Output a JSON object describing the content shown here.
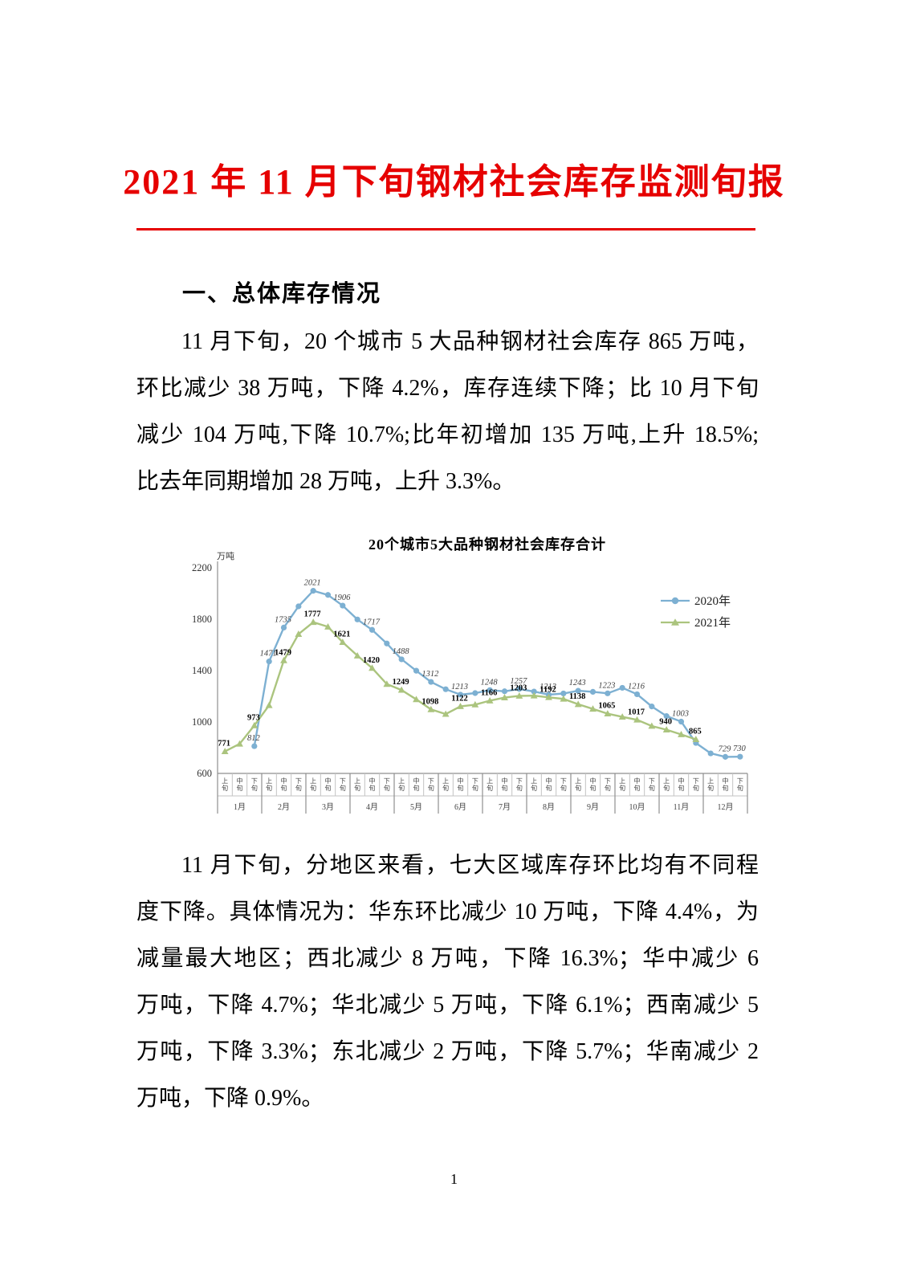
{
  "report": {
    "title": "2021 年 11 月下旬钢材社会库存监测旬报",
    "title_color": "#e60000",
    "section1_heading": "一、总体库存情况",
    "paragraph1_lines": [
      "11 月下旬，20 个城市 5 大品种钢材社会库存 865 万吨，",
      "环比减少 38 万吨，下降 4.2%，库存连续下降；比 10 月下旬",
      "减少 104 万吨,下降 10.7%;比年初增加 135 万吨,上升 18.5%;",
      "比去年同期增加 28 万吨，上升 3.3%。"
    ],
    "paragraph2_lines": [
      "11 月下旬，分地区来看，七大区域库存环比均有不同程",
      "度下降。具体情况为：华东环比减少 10 万吨，下降 4.4%，为",
      "减量最大地区；西北减少 8 万吨，下降 16.3%；华中减少 6",
      "万吨，下降 4.7%；华北减少 5 万吨，下降 6.1%；西南减少 5",
      "万吨，下降 3.3%；东北减少 2 万吨，下降 5.7%；华南减少 2",
      "万吨，下降 0.9%。"
    ],
    "page_number": "1"
  },
  "chart_data": {
    "type": "line",
    "title": "20个城市5大品种钢材社会库存合计",
    "unit_label": "万吨",
    "ylim": [
      600,
      2200
    ],
    "y_ticks": [
      2200,
      1800,
      1400,
      1000,
      600
    ],
    "grid": false,
    "legend_position": "right",
    "months": [
      "1月",
      "2月",
      "3月",
      "4月",
      "5月",
      "6月",
      "7月",
      "8月",
      "9月",
      "10月",
      "11月",
      "12月"
    ],
    "periods": [
      "上旬",
      "中旬",
      "下旬"
    ],
    "series": [
      {
        "name": "2020年",
        "color": "#7db0d2",
        "marker": "circle",
        "label_style": "italic",
        "values": [
          null,
          null,
          812,
          1471,
          1735,
          1900,
          2021,
          1989,
          1906,
          1798,
          1717,
          1611,
          1488,
          1399,
          1312,
          1255,
          1213,
          1225,
          1248,
          1239,
          1257,
          1237,
          1213,
          1222,
          1243,
          1235,
          1223,
          1266,
          1216,
          1121,
          1046,
          1003,
          837,
          756,
          729,
          730
        ],
        "labeled_slots": [
          2,
          3,
          4,
          6,
          8,
          10,
          12,
          14,
          16,
          18,
          20,
          22,
          24,
          26,
          28,
          31,
          34,
          35
        ]
      },
      {
        "name": "2021年",
        "color": "#abc47e",
        "marker": "triangle",
        "label_style": "bold",
        "values": [
          771,
          830,
          973,
          1130,
          1479,
          1684,
          1777,
          1741,
          1621,
          1516,
          1420,
          1295,
          1249,
          1176,
          1098,
          1062,
          1122,
          1135,
          1166,
          1190,
          1203,
          1205,
          1192,
          1180,
          1138,
          1102,
          1065,
          1040,
          1017,
          969,
          940,
          903,
          865,
          null,
          null,
          null
        ],
        "labeled_slots": [
          0,
          2,
          4,
          6,
          8,
          10,
          12,
          14,
          16,
          18,
          20,
          22,
          24,
          26,
          28,
          30,
          32
        ]
      }
    ]
  }
}
